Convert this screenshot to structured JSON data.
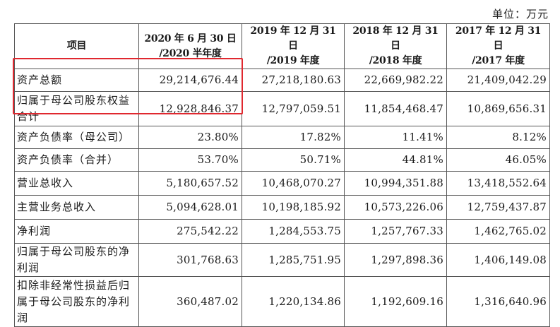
{
  "unit_label": "单位：万元",
  "highlight_color": "#e0282f",
  "table": {
    "headers": [
      {
        "line1": "项目",
        "line2": ""
      },
      {
        "line1": "2020 年 6 月 30 日",
        "line2": "/2020 半年度"
      },
      {
        "line1": "2019 年 12 月 31 日",
        "line2": "/2019 年度"
      },
      {
        "line1": "2018 年 12 月 31 日",
        "line2": "/2018 年度"
      },
      {
        "line1": "2017 年 12 月 31 日",
        "line2": "/2017 年度"
      }
    ],
    "rows": [
      {
        "label": "资产总额",
        "values": [
          "29,214,676.44",
          "27,218,180.63",
          "22,669,982.22",
          "21,409,042.29"
        ]
      },
      {
        "label": "归属于母公司股东权益合计",
        "values": [
          "12,928,846.37",
          "12,797,059.51",
          "11,854,468.47",
          "10,869,656.31"
        ]
      },
      {
        "label": "资产负债率（母公司）",
        "values": [
          "23.80%",
          "17.82%",
          "11.41%",
          "8.12%"
        ]
      },
      {
        "label": "资产负债率（合并）",
        "values": [
          "53.70%",
          "50.71%",
          "44.81%",
          "46.05%"
        ]
      },
      {
        "label": "营业总收入",
        "values": [
          "5,180,657.52",
          "10,468,070.27",
          "10,994,351.88",
          "13,418,552.64"
        ]
      },
      {
        "label": "主营业务总收入",
        "values": [
          "5,094,628.01",
          "10,198,185.92",
          "10,573,226.06",
          "12,759,437.87"
        ]
      },
      {
        "label": "净利润",
        "values": [
          "275,542.22",
          "1,284,553.75",
          "1,257,767.33",
          "1,462,765.02"
        ]
      },
      {
        "label": "归属于母公司股东的净利润",
        "values": [
          "301,768.63",
          "1,285,751.95",
          "1,297,898.36",
          "1,406,149.08"
        ]
      },
      {
        "label": "扣除非经常性损益后归属于母公司股东的净利润",
        "values": [
          "360,487.02",
          "1,220,134.86",
          "1,192,609.16",
          "1,316,640.96"
        ]
      }
    ]
  }
}
